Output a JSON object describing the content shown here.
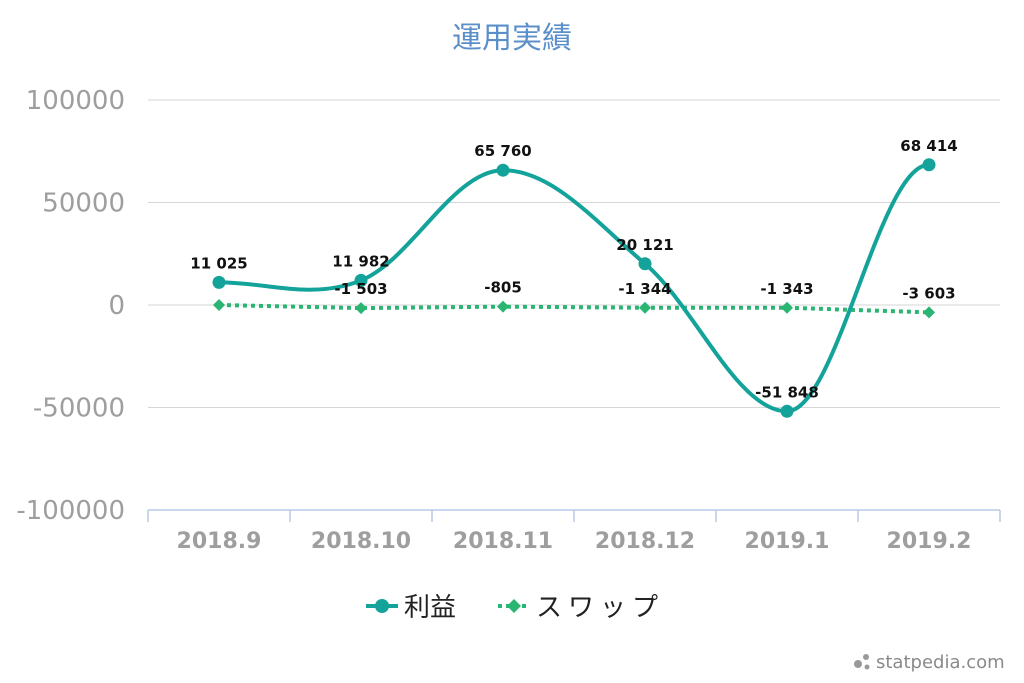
{
  "chart_data": {
    "type": "line",
    "title": "運用実績",
    "categories": [
      "2018.9",
      "2018.10",
      "2018.11",
      "2018.12",
      "2019.1",
      "2019.2"
    ],
    "ylim": [
      -100000,
      100000
    ],
    "yticks": [
      100000,
      50000,
      0,
      -50000,
      -100000
    ],
    "ytick_labels": [
      "100000",
      "50000",
      "0",
      "-50000",
      "-100000"
    ],
    "grid": true,
    "legend_position": "bottom",
    "series": [
      {
        "name": "利益",
        "values": [
          11025,
          11982,
          65760,
          20121,
          -51848,
          68414
        ],
        "labels": [
          "11 025",
          "11 982",
          "65 760",
          "20 121",
          "-51 848",
          "68 414"
        ],
        "color": "#14a39a",
        "style": "solid-smooth",
        "marker": "circle"
      },
      {
        "name": "スワップ",
        "values": [
          0,
          -1503,
          -805,
          -1344,
          -1343,
          -3603
        ],
        "labels": [
          "",
          "-1 503",
          "-805",
          "-1 344",
          "-1 343",
          "-3 603"
        ],
        "color": "#2bb573",
        "style": "dotted",
        "marker": "diamond"
      }
    ]
  },
  "watermark": {
    "text": "statpedia.com"
  }
}
